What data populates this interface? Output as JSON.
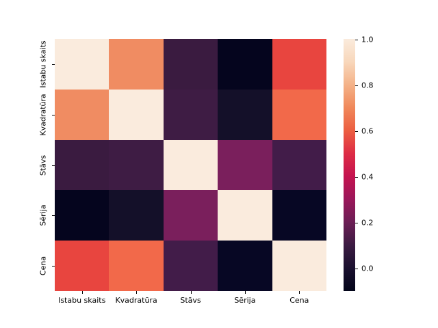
{
  "chart_data": {
    "type": "heatmap",
    "title": "",
    "xlabel": "",
    "ylabel": "",
    "colormap": "rocket",
    "grid": false,
    "legend_position": "right-colorbar",
    "categories": [
      "Istabu skaits",
      "Kvadratūra",
      "Stāvs",
      "Sērija",
      "Cena"
    ],
    "matrix": [
      [
        1.0,
        0.73,
        0.1,
        -0.1,
        0.59
      ],
      [
        0.73,
        1.0,
        0.11,
        -0.02,
        0.68
      ],
      [
        0.1,
        0.11,
        1.0,
        0.24,
        0.12
      ],
      [
        -0.1,
        -0.02,
        0.24,
        1.0,
        -0.08
      ],
      [
        0.59,
        0.68,
        0.12,
        -0.08,
        1.0
      ]
    ],
    "cell_colors": [
      [
        "#faebdd",
        "#f08c62",
        "#3a1b40",
        "#05051e",
        "#e8453f"
      ],
      [
        "#f08c62",
        "#faebdd",
        "#3e1c44",
        "#141029",
        "#f2694a"
      ],
      [
        "#3a1b40",
        "#3e1c44",
        "#faebdd",
        "#7a1f5c",
        "#421c49"
      ],
      [
        "#05051e",
        "#141029",
        "#7a1f5c",
        "#faebdd",
        "#070724"
      ],
      [
        "#e8453f",
        "#f2694a",
        "#421c49",
        "#070724",
        "#faebdd"
      ]
    ],
    "colorbar": {
      "vmin": -0.1,
      "vmax": 1.0,
      "tick_labels": [
        "1.0",
        "0.8",
        "0.6",
        "0.4",
        "0.2",
        "0.0"
      ],
      "tick_values": [
        1.0,
        0.8,
        0.6,
        0.4,
        0.2,
        0.0
      ],
      "gradient_stops_top_to_bottom": [
        "#faebdd",
        "#f8d7bb",
        "#f4b288",
        "#f0885a",
        "#ec5e41",
        "#dd2c45",
        "#c4134f",
        "#9a175a",
        "#6b1e55",
        "#3c1b42",
        "#1a102f",
        "#03051a"
      ]
    }
  }
}
